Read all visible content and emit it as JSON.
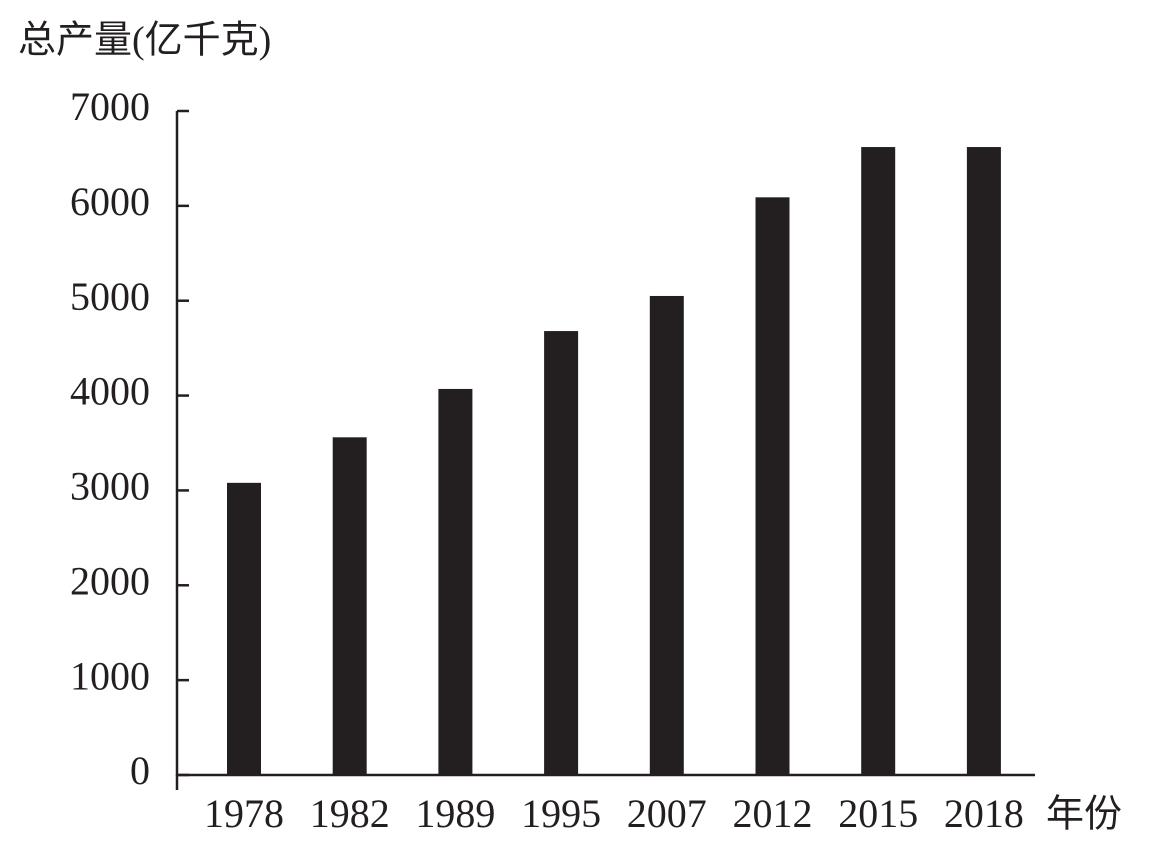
{
  "chart_data": {
    "type": "bar",
    "y_label": "总产量(亿千克)",
    "x_label": "年份",
    "categories": [
      "1978",
      "1982",
      "1989",
      "1995",
      "2007",
      "2012",
      "2015",
      "2018"
    ],
    "values": [
      3080,
      3560,
      4070,
      4680,
      5050,
      6090,
      6620,
      6620
    ],
    "color": "#231f20",
    "ylim": [
      0,
      7000
    ],
    "yticks": [
      0,
      1000,
      2000,
      3000,
      4000,
      5000,
      6000,
      7000
    ],
    "grid": false
  }
}
